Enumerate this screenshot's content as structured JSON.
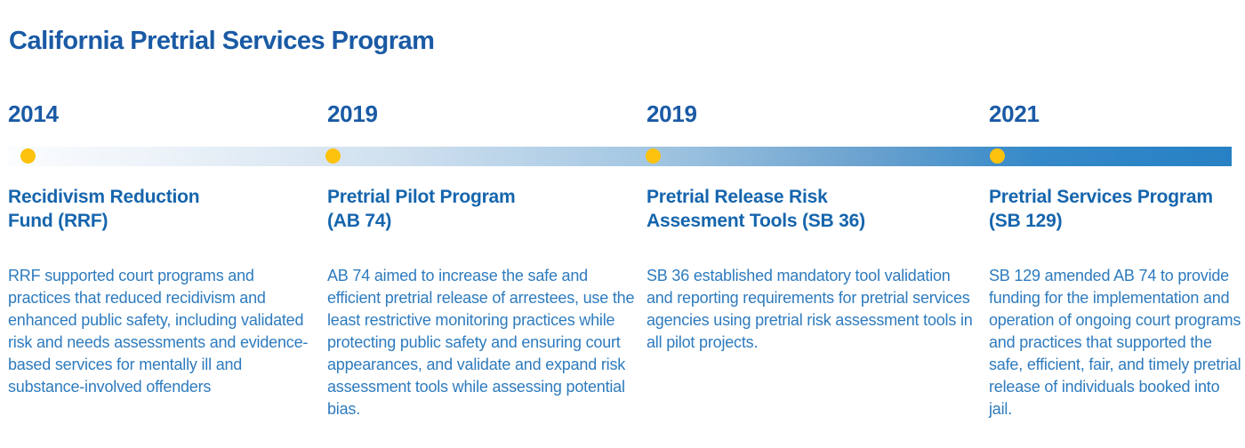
{
  "title": "California Pretrial Services Program",
  "colors": {
    "title_blue": "#1A5AA5",
    "heading_blue": "#1565AD",
    "body_blue": "#2E7BBE",
    "dot_yellow": "#FCC20E",
    "bar_gradient_start": "#FBFDFE",
    "bar_gradient_end": "#2781C4"
  },
  "timeline": {
    "events": [
      {
        "year": "2014",
        "heading_lines": [
          "Recidivism Reduction",
          "Fund (RRF)"
        ],
        "description": "RRF supported court programs and practices that reduced recidivism and enhanced public safety, including validated risk and needs assessments and evidence-based services for mentally ill and substance-involved offenders"
      },
      {
        "year": "2019",
        "heading_lines": [
          "Pretrial Pilot Program",
          "(AB 74)"
        ],
        "description": "AB 74 aimed to increase the safe and efficient pretrial release of arrestees, use the least restrictive monitoring practices while protecting public safety and ensuring court appearances, and validate and expand risk assessment tools while assessing potential bias."
      },
      {
        "year": "2019",
        "heading_lines": [
          "Pretrial Release Risk",
          "Assesment Tools (SB 36)"
        ],
        "description": "SB 36 established mandatory tool validation and reporting requirements for pretrial services agencies using pretrial risk assessment tools in all pilot projects."
      },
      {
        "year": "2021",
        "heading_lines": [
          "Pretrial Services Program",
          "(SB 129)"
        ],
        "description": "SB 129 amended AB 74 to provide funding for the implementation and operation of ongoing court programs and practices that supported the safe, efficient, fair, and timely pretrial release of individuals booked into jail."
      }
    ]
  }
}
